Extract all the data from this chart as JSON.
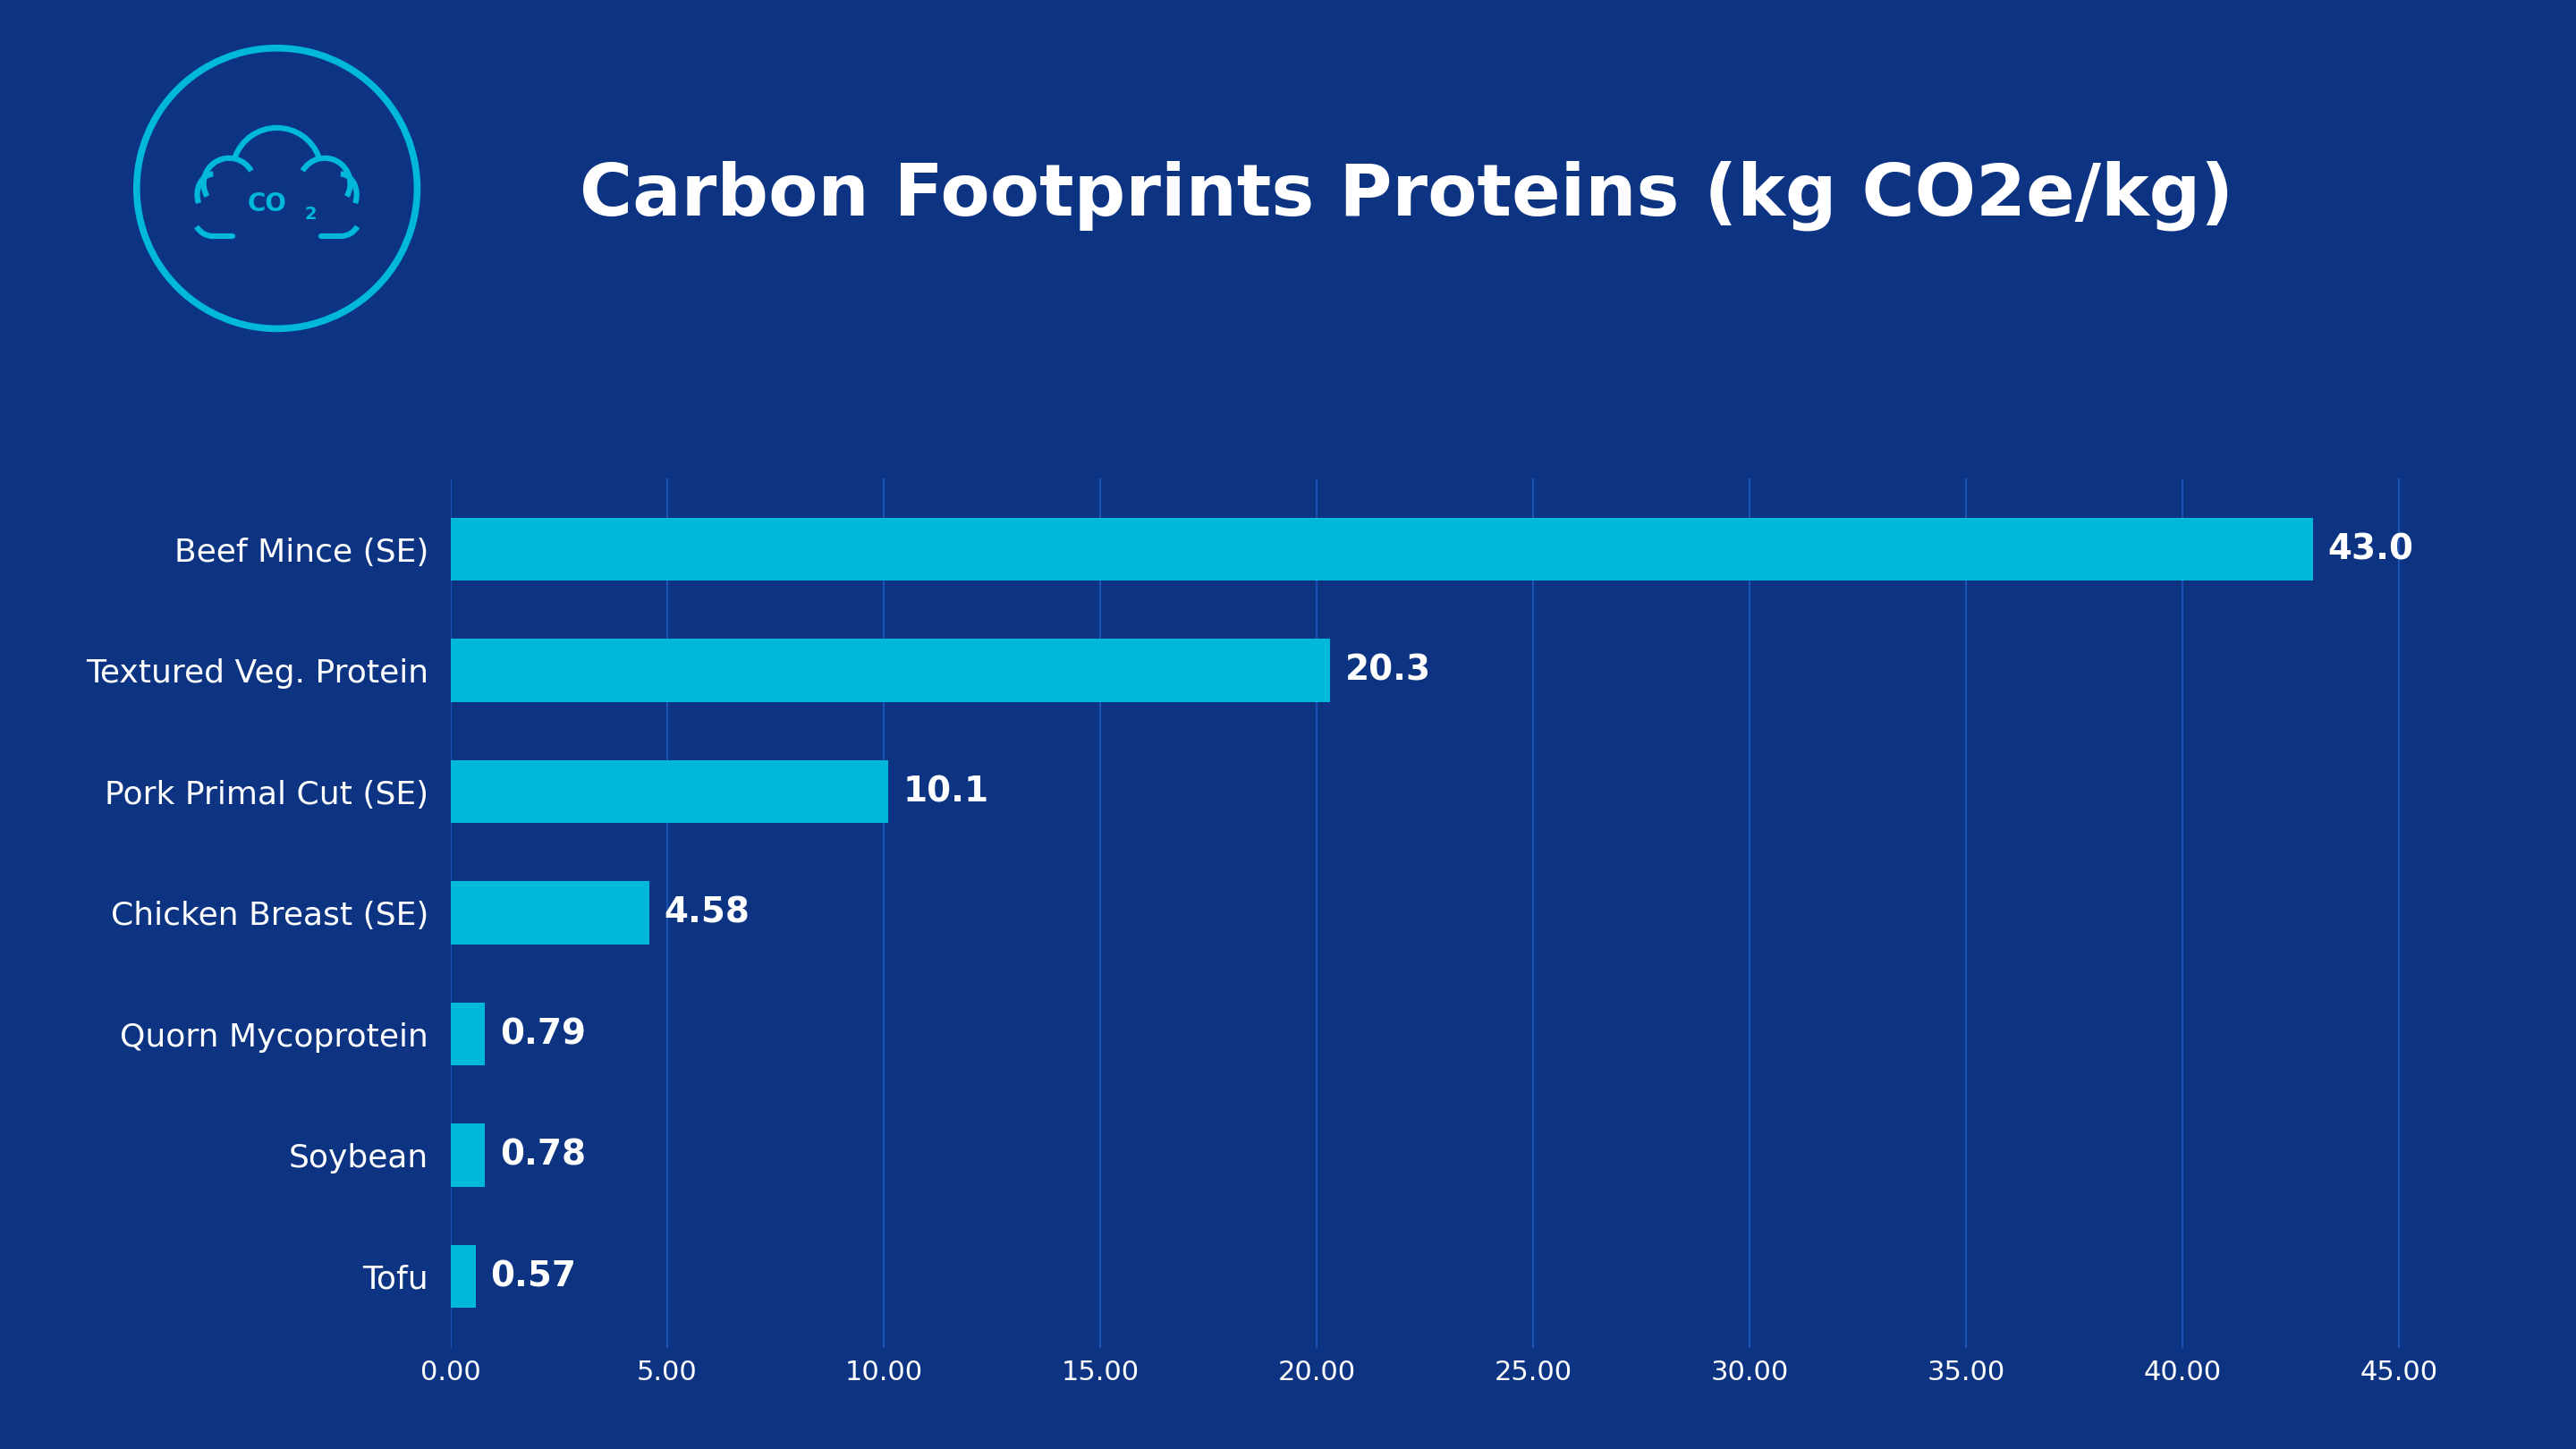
{
  "title": "Carbon Footprints Proteins (kg CO2e/kg)",
  "background_color": "#0c3483",
  "bar_color": "#00b8d9",
  "text_color": "#ffffff",
  "categories": [
    "Beef Mince (SE)",
    "Textured Veg. Protein",
    "Pork Primal Cut (SE)",
    "Chicken Breast (SE)",
    "Quorn Mycoprotein",
    "Soybean",
    "Tofu"
  ],
  "values": [
    43.0,
    20.3,
    10.1,
    4.58,
    0.79,
    0.78,
    0.57
  ],
  "value_labels": [
    "43.0",
    "20.3",
    "10.1",
    "4.58",
    "0.79",
    "0.78",
    "0.57"
  ],
  "xlim": [
    0,
    47
  ],
  "xticks": [
    0,
    5,
    10,
    15,
    20,
    25,
    30,
    35,
    40,
    45
  ],
  "xtick_labels": [
    "0.00",
    "5.00",
    "10.00",
    "15.00",
    "20.00",
    "25.00",
    "30.00",
    "35.00",
    "40.00",
    "45.00"
  ],
  "grid_color": "#1a52b3",
  "icon_stroke_color": "#00b8d9",
  "title_fontsize": 58,
  "label_fontsize": 26,
  "value_fontsize": 28,
  "tick_fontsize": 22
}
